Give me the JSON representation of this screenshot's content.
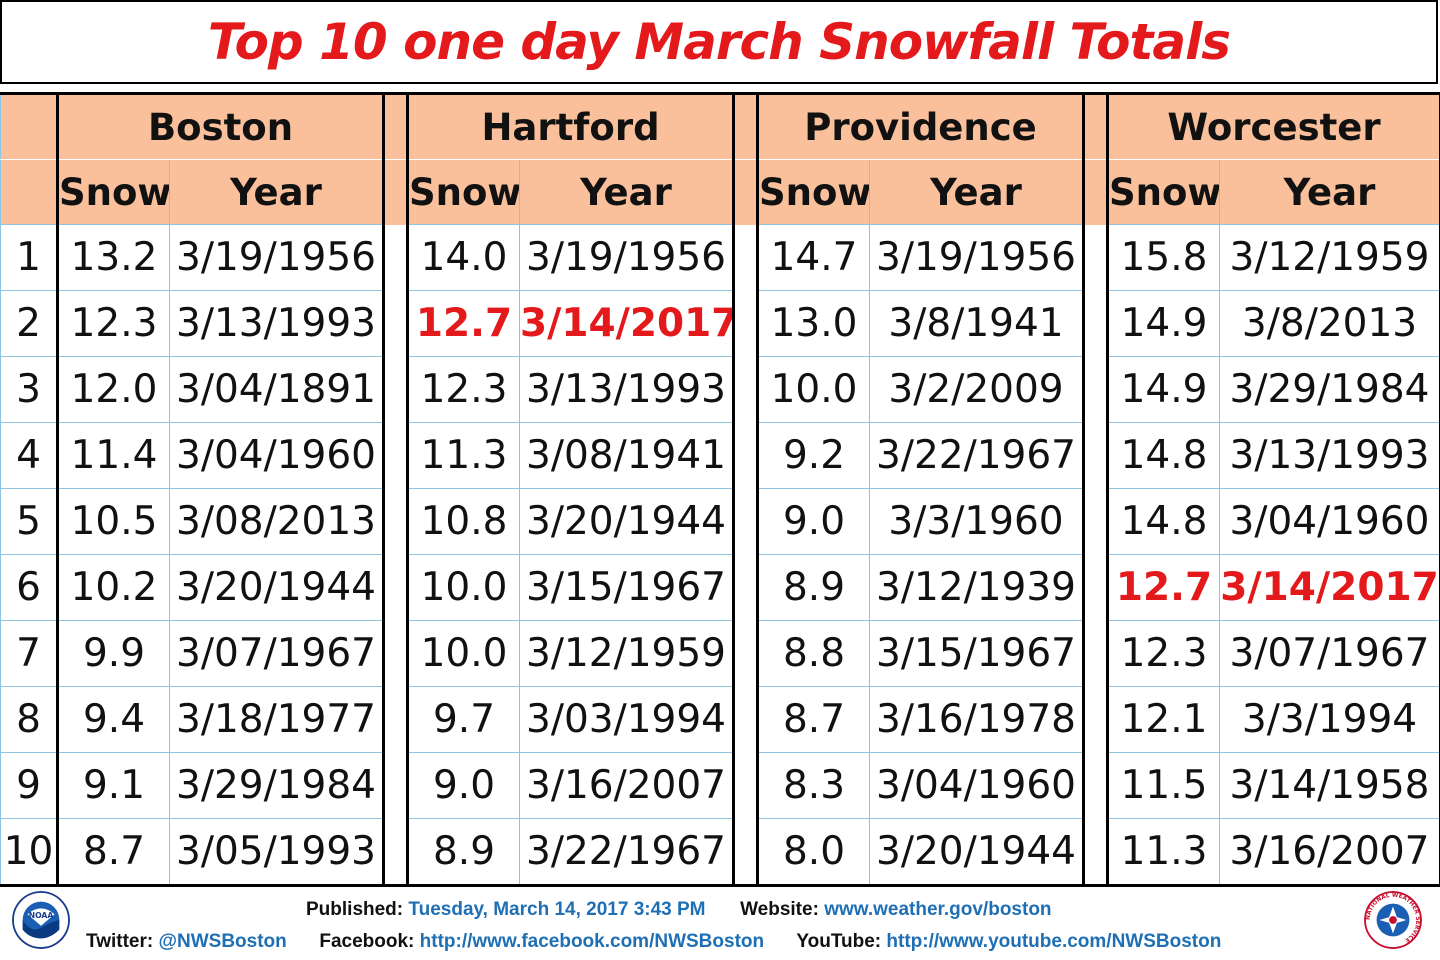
{
  "title": "Top 10 one day March Snowfall Totals",
  "colors": {
    "title": "#e3191b",
    "header_bg": "#f9c09b",
    "grid": "#8fc3df",
    "highlight": "#e3191b",
    "link": "#1f6fb5"
  },
  "chart_data": {
    "type": "table",
    "title": "Top 10 one day March Snowfall Totals",
    "city_headers": [
      "Boston",
      "Hartford",
      "Providence",
      "Worcester"
    ],
    "column_headers": [
      "Snow",
      "Year"
    ],
    "ranks": [
      "1",
      "2",
      "3",
      "4",
      "5",
      "6",
      "7",
      "8",
      "9",
      "10"
    ],
    "cities": [
      {
        "name": "Boston",
        "rows": [
          {
            "snow": "13.2",
            "year": "3/19/1956"
          },
          {
            "snow": "12.3",
            "year": "3/13/1993"
          },
          {
            "snow": "12.0",
            "year": "3/04/1891"
          },
          {
            "snow": "11.4",
            "year": "3/04/1960"
          },
          {
            "snow": "10.5",
            "year": "3/08/2013"
          },
          {
            "snow": "10.2",
            "year": "3/20/1944"
          },
          {
            "snow": "9.9",
            "year": "3/07/1967"
          },
          {
            "snow": "9.4",
            "year": "3/18/1977"
          },
          {
            "snow": "9.1",
            "year": "3/29/1984"
          },
          {
            "snow": "8.7",
            "year": "3/05/1993"
          }
        ]
      },
      {
        "name": "Hartford",
        "rows": [
          {
            "snow": "14.0",
            "year": "3/19/1956"
          },
          {
            "snow": "12.7",
            "year": "3/14/2017",
            "highlight": true
          },
          {
            "snow": "12.3",
            "year": "3/13/1993"
          },
          {
            "snow": "11.3",
            "year": "3/08/1941"
          },
          {
            "snow": "10.8",
            "year": "3/20/1944"
          },
          {
            "snow": "10.0",
            "year": "3/15/1967"
          },
          {
            "snow": "10.0",
            "year": "3/12/1959"
          },
          {
            "snow": "9.7",
            "year": "3/03/1994"
          },
          {
            "snow": "9.0",
            "year": "3/16/2007"
          },
          {
            "snow": "8.9",
            "year": "3/22/1967"
          }
        ]
      },
      {
        "name": "Providence",
        "rows": [
          {
            "snow": "14.7",
            "year": "3/19/1956"
          },
          {
            "snow": "13.0",
            "year": "3/8/1941"
          },
          {
            "snow": "10.0",
            "year": "3/2/2009"
          },
          {
            "snow": "9.2",
            "year": "3/22/1967"
          },
          {
            "snow": "9.0",
            "year": "3/3/1960"
          },
          {
            "snow": "8.9",
            "year": "3/12/1939"
          },
          {
            "snow": "8.8",
            "year": "3/15/1967"
          },
          {
            "snow": "8.7",
            "year": "3/16/1978"
          },
          {
            "snow": "8.3",
            "year": "3/04/1960"
          },
          {
            "snow": "8.0",
            "year": "3/20/1944"
          }
        ]
      },
      {
        "name": "Worcester",
        "rows": [
          {
            "snow": "15.8",
            "year": "3/12/1959"
          },
          {
            "snow": "14.9",
            "year": "3/8/2013"
          },
          {
            "snow": "14.9",
            "year": "3/29/1984"
          },
          {
            "snow": "14.8",
            "year": "3/13/1993"
          },
          {
            "snow": "14.8",
            "year": "3/04/1960"
          },
          {
            "snow": "12.7",
            "year": "3/14/2017",
            "highlight": true
          },
          {
            "snow": "12.3",
            "year": "3/07/1967"
          },
          {
            "snow": "12.1",
            "year": "3/3/1994"
          },
          {
            "snow": "11.5",
            "year": "3/14/1958"
          },
          {
            "snow": "11.3",
            "year": "3/16/2007"
          }
        ]
      }
    ]
  },
  "footer": {
    "published_label": "Published:",
    "published_value": "Tuesday, March 14, 2017 3:43 PM",
    "website_label": "Website:",
    "website_value": "www.weather.gov/boston",
    "twitter_label": "Twitter:",
    "twitter_value": "@NWSBoston",
    "facebook_label": "Facebook:",
    "facebook_value": "http://www.facebook.com/NWSBoston",
    "youtube_label": "YouTube:",
    "youtube_value": "http://www.youtube.com/NWSBoston",
    "noaa_logo_text": "NOAA",
    "nws_logo_text": "NATIONAL WEATHER SERVICE"
  }
}
